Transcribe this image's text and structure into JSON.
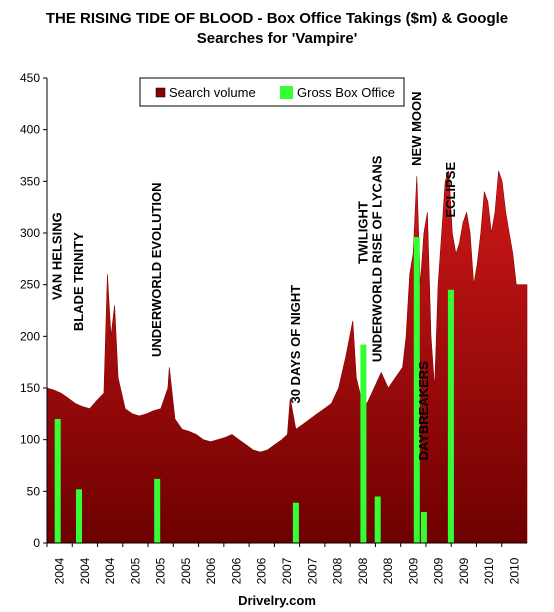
{
  "title_line1": "THE RISING TIDE OF BLOOD  - Box Office Takings ($m) & Google",
  "title_line2": "Searches for 'Vampire'",
  "source": "Drivelry.com",
  "chart_data": {
    "type": "area",
    "ylim": [
      0,
      450
    ],
    "yticks": [
      0,
      50,
      100,
      150,
      200,
      250,
      300,
      350,
      400,
      450
    ],
    "xlim": [
      2004.0,
      2010.75
    ],
    "xtick_labels": [
      "2004",
      "2004",
      "2004",
      "2005",
      "2005",
      "2005",
      "2006",
      "2006",
      "2006",
      "2007",
      "2007",
      "2008",
      "2008",
      "2008",
      "2009",
      "2009",
      "2009",
      "2010",
      "2010"
    ],
    "grid": false,
    "legend": "top-center",
    "colors": {
      "search": "#8b0000",
      "search_top": "#c01010",
      "box": "#33ff33"
    },
    "series": [
      {
        "name": "Search volume",
        "type": "area",
        "x": [
          2004.0,
          2004.1,
          2004.2,
          2004.3,
          2004.4,
          2004.5,
          2004.6,
          2004.7,
          2004.8,
          2004.85,
          2004.9,
          2004.95,
          2005.0,
          2005.1,
          2005.2,
          2005.3,
          2005.4,
          2005.5,
          2005.6,
          2005.7,
          2005.72,
          2005.8,
          2005.9,
          2006.0,
          2006.1,
          2006.2,
          2006.3,
          2006.4,
          2006.5,
          2006.6,
          2006.7,
          2006.8,
          2006.9,
          2007.0,
          2007.1,
          2007.2,
          2007.3,
          2007.38,
          2007.42,
          2007.5,
          2007.6,
          2007.7,
          2007.8,
          2007.9,
          2008.0,
          2008.1,
          2008.2,
          2008.3,
          2008.35,
          2008.42,
          2008.5,
          2008.6,
          2008.7,
          2008.8,
          2008.9,
          2009.0,
          2009.05,
          2009.1,
          2009.15,
          2009.2,
          2009.25,
          2009.3,
          2009.35,
          2009.4,
          2009.45,
          2009.5,
          2009.55,
          2009.6,
          2009.65,
          2009.7,
          2009.75,
          2009.8,
          2009.85,
          2009.9,
          2009.95,
          2010.0,
          2010.05,
          2010.1,
          2010.15,
          2010.2,
          2010.25,
          2010.3,
          2010.35,
          2010.4,
          2010.45,
          2010.5,
          2010.55,
          2010.6
        ],
        "values": [
          150,
          148,
          145,
          140,
          135,
          132,
          130,
          138,
          145,
          260,
          200,
          230,
          160,
          130,
          125,
          123,
          125,
          128,
          130,
          150,
          170,
          120,
          110,
          108,
          105,
          100,
          98,
          100,
          102,
          105,
          100,
          95,
          90,
          88,
          90,
          95,
          100,
          105,
          140,
          110,
          115,
          120,
          125,
          130,
          135,
          150,
          180,
          215,
          160,
          140,
          135,
          150,
          165,
          150,
          160,
          170,
          200,
          260,
          280,
          355,
          250,
          300,
          320,
          200,
          150,
          250,
          300,
          350,
          360,
          300,
          280,
          290,
          310,
          320,
          300,
          250,
          270,
          300,
          340,
          330,
          300,
          320,
          360,
          350,
          320,
          300,
          280,
          250
        ],
        "x_extent": [
          2004.0,
          2010.75
        ]
      },
      {
        "name": "Gross Box Office",
        "type": "bar",
        "x": [
          2004.15,
          2004.45,
          2005.55,
          2007.5,
          2008.45,
          2008.65,
          2009.2,
          2009.3,
          2009.68
        ],
        "values": [
          120,
          52,
          62,
          39,
          192,
          45,
          296,
          30,
          245
        ]
      }
    ],
    "annotations": [
      {
        "text": "VAN HELSING",
        "x": 2004.15,
        "y": 235
      },
      {
        "text": "BLADE TRINITY",
        "x": 2004.45,
        "y": 205
      },
      {
        "text": "UNDERWORLD EVOLUTION",
        "x": 2005.55,
        "y": 180
      },
      {
        "text": "30 DAYS OF NIGHT",
        "x": 2007.5,
        "y": 135
      },
      {
        "text": "TWILIGHT",
        "x": 2008.45,
        "y": 270
      },
      {
        "text": "UNDERWORLD RISE OF LYCANS",
        "x": 2008.65,
        "y": 175
      },
      {
        "text": "NEW MOON",
        "x": 2009.2,
        "y": 365
      },
      {
        "text": "DAYBREAKERS",
        "x": 2009.3,
        "y": 80
      },
      {
        "text": "ECLIPSE",
        "x": 2009.68,
        "y": 315
      }
    ]
  }
}
